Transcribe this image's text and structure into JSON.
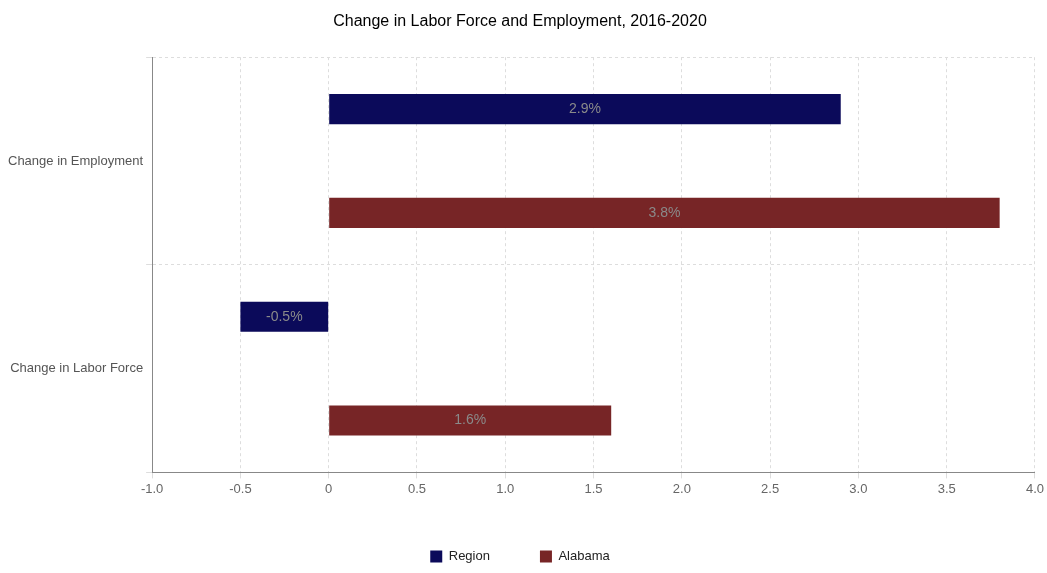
{
  "chart_data": {
    "type": "bar",
    "orientation": "horizontal",
    "title": "Change in Labor Force and Employment, 2016-2020",
    "categories": [
      "Change in Employment",
      "Change in Labor Force"
    ],
    "series": [
      {
        "name": "Region",
        "color": "#0b0a5a",
        "values": [
          2.9,
          -0.5
        ],
        "value_labels": [
          "2.9%",
          "-0.5%"
        ]
      },
      {
        "name": "Alabama",
        "color": "#772526",
        "values": [
          3.8,
          1.6
        ],
        "value_labels": [
          "3.8%",
          "1.6%"
        ]
      }
    ],
    "xlim": [
      -1,
      4
    ],
    "xticks": [
      {
        "value": -1,
        "label": "-1.0"
      },
      -0.5,
      0,
      0.5,
      {
        "value": 1,
        "label": "1.0"
      },
      1.5,
      {
        "value": 2,
        "label": "2.0"
      },
      2.5,
      {
        "value": 3,
        "label": "3.0"
      },
      3.5,
      {
        "value": 4,
        "label": "4.0"
      }
    ],
    "grid": true,
    "legend": "bottom"
  }
}
